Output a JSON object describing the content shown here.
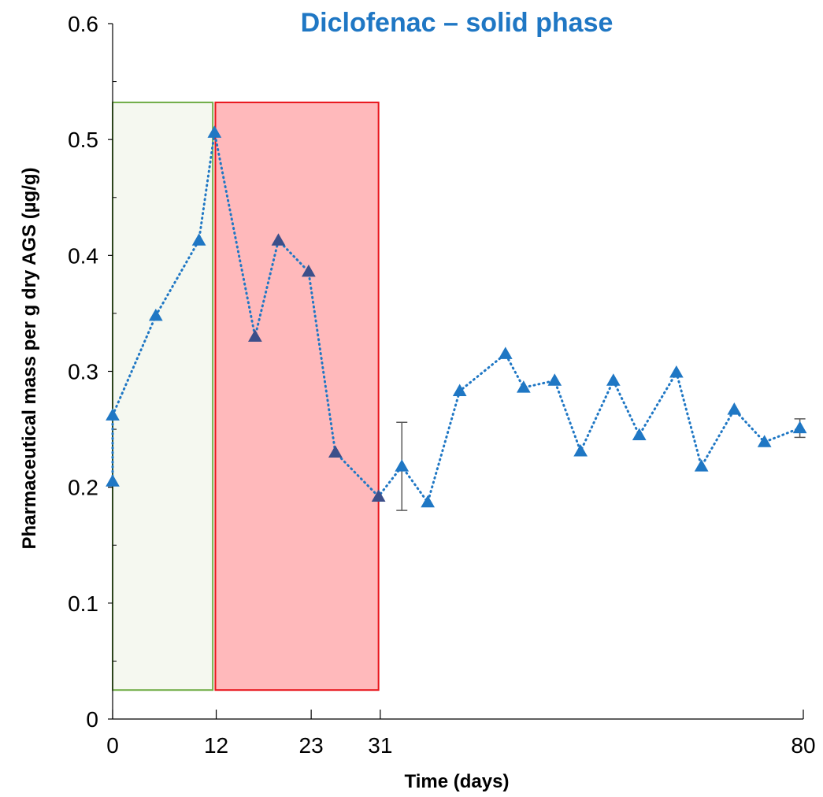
{
  "chart_data": {
    "type": "line",
    "title": "Diclofenac – solid phase",
    "xlabel": "Time (days)",
    "ylabel": "Pharmaceutical mass per g dry AGS (µg/g)",
    "xlim": [
      0,
      80
    ],
    "ylim": [
      0,
      0.6
    ],
    "x_ticks": [
      0,
      12,
      23,
      31,
      80
    ],
    "y_ticks": [
      0,
      0.1,
      0.2,
      0.3,
      0.4,
      0.5,
      0.6
    ],
    "y_tick_labels": [
      "0",
      "0.1",
      "0.2",
      "0.3",
      "0.4",
      "0.5",
      "0.6"
    ],
    "grid": false,
    "shaded_regions": [
      {
        "x": [
          0,
          11.6
        ],
        "y": [
          0.025,
          0.532
        ],
        "fill": "#f5f8f0",
        "stroke": "#70ad47"
      },
      {
        "x": [
          11.9,
          30.8
        ],
        "y": [
          0.025,
          0.532
        ],
        "fill": "#ffb9bb",
        "stroke": "#e8141b"
      }
    ],
    "series": [
      {
        "color": "#1f77c4",
        "marker": "triangle",
        "line_style": "dotted",
        "points": [
          {
            "x": 0,
            "y": 0.205
          },
          {
            "x": 0,
            "y": 0.262
          },
          {
            "x": 5,
            "y": 0.348
          },
          {
            "x": 10,
            "y": 0.413
          },
          {
            "x": 11.8,
            "y": 0.506
          },
          {
            "x": 16.5,
            "y": 0.33
          },
          {
            "x": 19.2,
            "y": 0.413
          },
          {
            "x": 22.7,
            "y": 0.386
          },
          {
            "x": 25.8,
            "y": 0.23
          },
          {
            "x": 30.8,
            "y": 0.192
          },
          {
            "x": 33.5,
            "y": 0.218,
            "err": 0.038
          },
          {
            "x": 36.5,
            "y": 0.187
          },
          {
            "x": 40.2,
            "y": 0.283
          },
          {
            "x": 45.5,
            "y": 0.315
          },
          {
            "x": 47.6,
            "y": 0.286
          },
          {
            "x": 51.2,
            "y": 0.292
          },
          {
            "x": 54.2,
            "y": 0.231
          },
          {
            "x": 58.0,
            "y": 0.292
          },
          {
            "x": 61.0,
            "y": 0.245
          },
          {
            "x": 65.3,
            "y": 0.299
          },
          {
            "x": 68.2,
            "y": 0.218
          },
          {
            "x": 72.0,
            "y": 0.267
          },
          {
            "x": 75.5,
            "y": 0.239
          },
          {
            "x": 79.6,
            "y": 0.251,
            "err": 0.008
          }
        ]
      }
    ],
    "title_color": "#1f77c4",
    "highlight_marker_color": "#3c4f8a"
  }
}
